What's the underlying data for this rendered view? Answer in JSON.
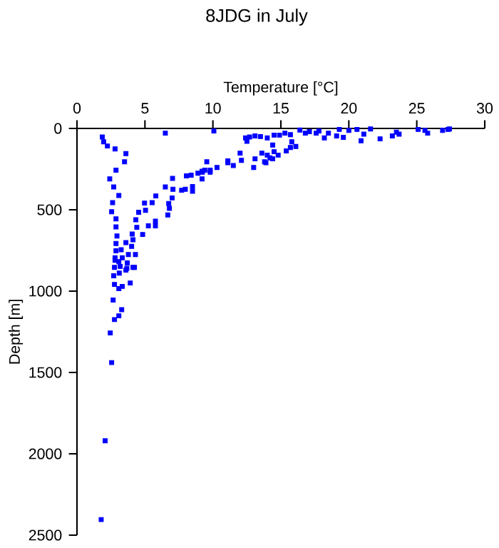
{
  "chart_data": {
    "type": "scatter",
    "title": "8JDG in July",
    "xlabel": "Temperature [°C]",
    "ylabel": "Depth [m]",
    "x": [
      1.86,
      1.96,
      2.24,
      2.8,
      3.6,
      3.5,
      2.87,
      2.41,
      2.7,
      3.08,
      2.62,
      2.55,
      2.87,
      2.87,
      2.94,
      2.87,
      2.87,
      2.8,
      2.76,
      6.5,
      10.07,
      12.0,
      11.1,
      10.3,
      9.8,
      9.55,
      9.23,
      8.9,
      8.5,
      8.05,
      7.97,
      7.7,
      7.03,
      7.0,
      7.06,
      6.75,
      6.5,
      6.8,
      6.68,
      5.8,
      5.53,
      4.97,
      5.04,
      4.54,
      4.33,
      4.4,
      4.83,
      5.25,
      5.77,
      5.77,
      4.06,
      4.12,
      3.6,
      4.02,
      3.25,
      3.78,
      3.33,
      4.3,
      3.08,
      3.67,
      4.12,
      3.7,
      2.8,
      3.18,
      4.23,
      3.6,
      3.11,
      2.7,
      3.92,
      2.76,
      3.33,
      3.08,
      2.66,
      3.29,
      3.08,
      2.76,
      2.45,
      2.55,
      2.07,
      1.78,
      8.4,
      9.2,
      8.5,
      9.2,
      9.4,
      9.8,
      11.1,
      11.5,
      12.1,
      13.0,
      13.1,
      13.6,
      13.9,
      14.4,
      14.5,
      14.8,
      14.0,
      14.4,
      15.4,
      15.7,
      16.1,
      15.8,
      12.5,
      12.4,
      12.7,
      13.1,
      13.5,
      14.0,
      14.5,
      14.9,
      15.3,
      15.7,
      16.4,
      16.8,
      17.1,
      17.6,
      17.8,
      18.2,
      18.5,
      19.1,
      19.3,
      19.6,
      20.0,
      20.6,
      20.9,
      21.1,
      21.6,
      22.3,
      23.2,
      23.5,
      23.7,
      25.1,
      25.6,
      25.8,
      26.9,
      27.3,
      27.4,
      14.2,
      13.8
    ],
    "values": [
      53,
      82,
      108,
      126,
      155,
      205,
      257,
      310,
      360,
      412,
      456,
      512,
      556,
      605,
      661,
      707,
      752,
      795,
      854,
      29,
      15,
      152,
      199,
      240,
      257,
      205,
      269,
      275,
      357,
      292,
      374,
      380,
      307,
      427,
      374,
      462,
      360,
      491,
      532,
      415,
      456,
      459,
      503,
      515,
      561,
      608,
      652,
      599,
      570,
      599,
      649,
      684,
      702,
      725,
      746,
      775,
      795,
      775,
      819,
      860,
      854,
      827,
      810,
      848,
      854,
      871,
      889,
      906,
      950,
      959,
      971,
      985,
      1055,
      1114,
      1152,
      1175,
      1257,
      1439,
      1920,
      2404,
      287,
      310,
      386,
      263,
      257,
      269,
      211,
      228,
      196,
      240,
      187,
      152,
      211,
      187,
      143,
      164,
      164,
      102,
      138,
      117,
      111,
      82,
      79,
      58,
      53,
      46,
      50,
      58,
      41,
      41,
      29,
      38,
      10,
      29,
      20,
      29,
      15,
      58,
      29,
      46,
      6,
      55,
      12,
      6,
      76,
      35,
      3,
      64,
      46,
      23,
      35,
      6,
      12,
      29,
      12,
      6,
      3,
      181,
      205
    ],
    "color": "#0000ff",
    "marker": "square",
    "xlim": [
      0,
      30
    ],
    "ylim": [
      2500,
      0
    ],
    "xticks": [
      0,
      5,
      10,
      15,
      20,
      25,
      30
    ],
    "yticks": [
      0,
      500,
      1000,
      1500,
      2000,
      2500
    ]
  }
}
